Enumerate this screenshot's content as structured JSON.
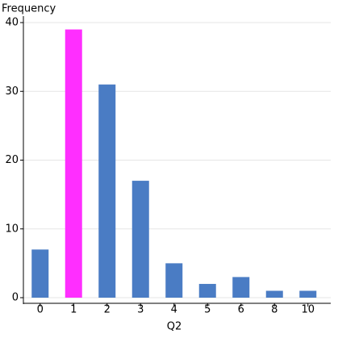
{
  "chart_data": {
    "type": "bar",
    "y_label": "Frequency",
    "x_label": "Q2",
    "categories": [
      "0",
      "1",
      "2",
      "3",
      "4",
      "5",
      "6",
      "8",
      "10"
    ],
    "values": [
      7,
      39,
      31,
      17,
      5,
      2,
      3,
      1,
      1
    ],
    "colors": [
      "#4a7cc4",
      "#ff2eff",
      "#4a7cc4",
      "#4a7cc4",
      "#4a7cc4",
      "#4a7cc4",
      "#4a7cc4",
      "#4a7cc4",
      "#4a7cc4"
    ],
    "ylim": [
      0,
      40
    ],
    "yticks": [
      0,
      10,
      20,
      30,
      40
    ],
    "grid": true
  }
}
